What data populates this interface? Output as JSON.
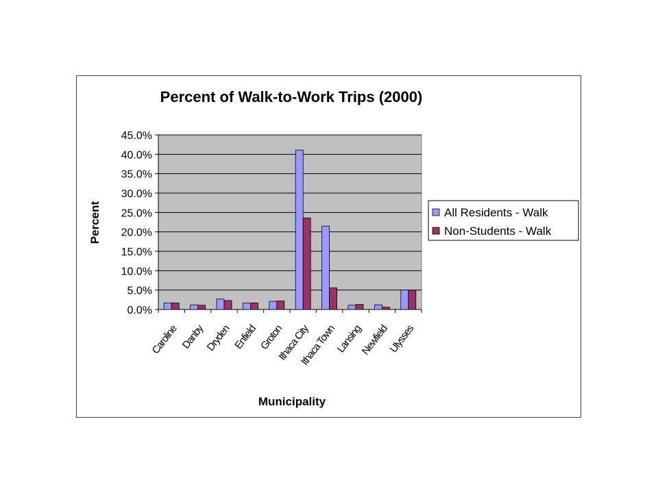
{
  "chart_data": {
    "type": "bar",
    "title": "Percent of Walk-to-Work Trips (2000)",
    "xlabel": "Municipality",
    "ylabel": "Percent",
    "ylim": [
      0,
      45
    ],
    "y_ticks": [
      "0.0%",
      "5.0%",
      "10.0%",
      "15.0%",
      "20.0%",
      "25.0%",
      "30.0%",
      "35.0%",
      "40.0%",
      "45.0%"
    ],
    "categories": [
      "Caroline",
      "Danby",
      "Dryden",
      "Enfield",
      "Groton",
      "Ithaca City",
      "Ithaca Town",
      "Lansing",
      "Newfield",
      "Ulysses"
    ],
    "series": [
      {
        "name": "All Residents - Walk",
        "color": "#9999ff",
        "values": [
          1.7,
          1.2,
          2.7,
          1.7,
          2.1,
          41.1,
          21.5,
          1.1,
          1.2,
          5.0
        ]
      },
      {
        "name": "Non-Students - Walk",
        "color": "#993366",
        "values": [
          1.7,
          1.1,
          2.3,
          1.7,
          2.2,
          23.6,
          5.6,
          1.3,
          0.6,
          5.0
        ]
      }
    ],
    "grid": true,
    "plot_background": "#c0c0c0",
    "legend_position": "right"
  }
}
